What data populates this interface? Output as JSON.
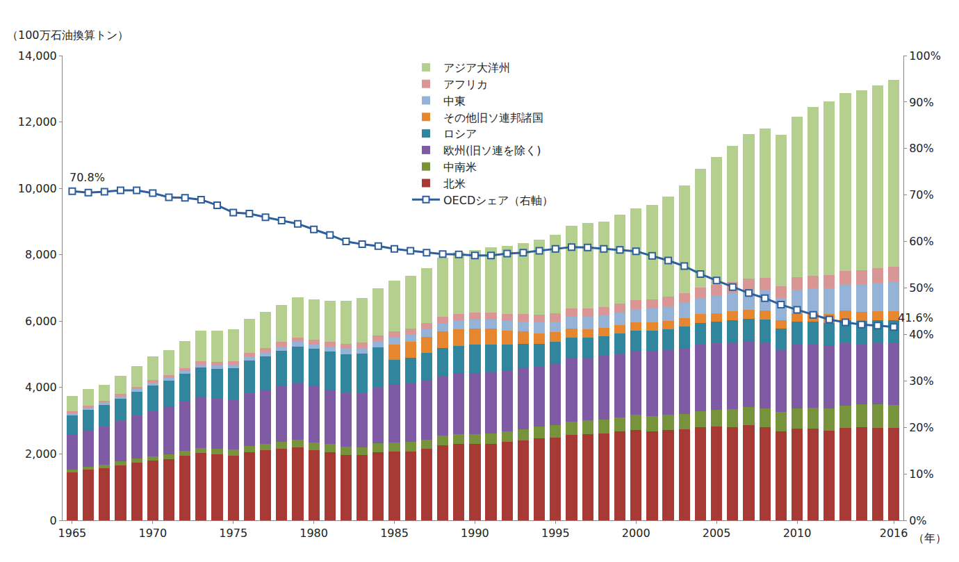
{
  "chart_data": {
    "type": "bar",
    "stacked": true,
    "grid": false,
    "legend": "top",
    "y_label": "（100万石油換算トン）",
    "x_label": "（年）",
    "x": [
      1965,
      1966,
      1967,
      1968,
      1969,
      1970,
      1971,
      1972,
      1973,
      1974,
      1975,
      1976,
      1977,
      1978,
      1979,
      1980,
      1981,
      1982,
      1983,
      1984,
      1985,
      1986,
      1987,
      1988,
      1989,
      1990,
      1991,
      1992,
      1993,
      1994,
      1995,
      1996,
      1997,
      1998,
      1999,
      2000,
      2001,
      2002,
      2003,
      2004,
      2005,
      2006,
      2007,
      2008,
      2009,
      2010,
      2011,
      2012,
      2013,
      2014,
      2015,
      2016
    ],
    "xlim": [
      1964.4,
      2016.6
    ],
    "xticks": [
      1965,
      1970,
      1975,
      1980,
      1985,
      1990,
      1995,
      2000,
      2005,
      2010,
      2016
    ],
    "ylim": [
      0,
      14000
    ],
    "yticks": [
      0,
      {
        "value": 2000,
        "label": "2,000"
      },
      {
        "value": 4000,
        "label": "4,000"
      },
      {
        "value": 6000,
        "label": "6,000"
      },
      {
        "value": 8000,
        "label": "8,000"
      },
      {
        "value": 10000,
        "label": "10,000"
      },
      {
        "value": 12000,
        "label": "12,000"
      },
      {
        "value": 14000,
        "label": "14,000"
      }
    ],
    "y2lim": [
      0,
      100
    ],
    "y2ticks": [
      {
        "value": 0,
        "label": "0%"
      },
      {
        "value": 10,
        "label": "10%"
      },
      {
        "value": 20,
        "label": "20%"
      },
      {
        "value": 30,
        "label": "30%"
      },
      {
        "value": 40,
        "label": "40%"
      },
      {
        "value": 50,
        "label": "50%"
      },
      {
        "value": 60,
        "label": "60%"
      },
      {
        "value": 70,
        "label": "70%"
      },
      {
        "value": 80,
        "label": "80%"
      },
      {
        "value": 90,
        "label": "90%"
      },
      {
        "value": 100,
        "label": "100%"
      }
    ],
    "series": [
      {
        "name": "北米",
        "color": "#a83a36",
        "values": [
          1440,
          1520,
          1580,
          1660,
          1740,
          1800,
          1850,
          1950,
          2020,
          1980,
          1950,
          2050,
          2110,
          2160,
          2190,
          2110,
          2060,
          1970,
          1960,
          2060,
          2070,
          2080,
          2150,
          2250,
          2300,
          2300,
          2310,
          2360,
          2410,
          2460,
          2500,
          2570,
          2590,
          2610,
          2670,
          2730,
          2680,
          2720,
          2740,
          2800,
          2820,
          2810,
          2860,
          2800,
          2680,
          2760,
          2760,
          2710,
          2780,
          2810,
          2790,
          2780
        ]
      },
      {
        "name": "中南米",
        "color": "#77933c",
        "values": [
          90,
          95,
          100,
          110,
          120,
          130,
          140,
          150,
          160,
          170,
          180,
          190,
          200,
          215,
          230,
          240,
          240,
          245,
          245,
          255,
          265,
          275,
          285,
          295,
          300,
          305,
          315,
          325,
          340,
          355,
          375,
          395,
          415,
          430,
          435,
          450,
          455,
          460,
          470,
          490,
          510,
          530,
          555,
          575,
          575,
          610,
          635,
          655,
          680,
          690,
          700,
          700
        ]
      },
      {
        "name": "欧州(旧ソ連を除く)",
        "color": "#7f5ba6",
        "values": [
          1060,
          1100,
          1140,
          1220,
          1300,
          1380,
          1420,
          1480,
          1550,
          1520,
          1500,
          1580,
          1600,
          1660,
          1720,
          1690,
          1640,
          1620,
          1630,
          1680,
          1740,
          1770,
          1800,
          1810,
          1820,
          1840,
          1850,
          1830,
          1830,
          1830,
          1860,
          1910,
          1900,
          1910,
          1910,
          1920,
          1950,
          1950,
          1980,
          2000,
          2000,
          2010,
          1990,
          1990,
          1880,
          1940,
          1890,
          1890,
          1880,
          1810,
          1850,
          1870
        ]
      },
      {
        "name": "ロシア",
        "color": "#31859c",
        "values": [
          580,
          620,
          650,
          680,
          720,
          760,
          800,
          830,
          870,
          900,
          950,
          990,
          1030,
          1070,
          1100,
          1120,
          1140,
          1160,
          1180,
          1210,
          760,
          780,
          800,
          830,
          830,
          850,
          830,
          780,
          740,
          670,
          640,
          630,
          600,
          600,
          610,
          620,
          630,
          630,
          640,
          650,
          650,
          670,
          670,
          680,
          650,
          670,
          690,
          690,
          690,
          690,
          680,
          670
        ]
      },
      {
        "name": "その他旧ソ連邦諸国",
        "color": "#e6862f",
        "values": [
          null,
          null,
          null,
          null,
          null,
          null,
          null,
          null,
          null,
          null,
          null,
          null,
          null,
          null,
          null,
          null,
          null,
          null,
          null,
          null,
          470,
          480,
          490,
          500,
          500,
          490,
          470,
          420,
          370,
          320,
          290,
          280,
          260,
          250,
          250,
          250,
          255,
          255,
          260,
          265,
          265,
          270,
          270,
          270,
          250,
          260,
          275,
          280,
          280,
          280,
          275,
          280
        ]
      },
      {
        "name": "中東",
        "color": "#95b3d7",
        "values": [
          50,
          55,
          58,
          62,
          68,
          72,
          78,
          85,
          92,
          98,
          105,
          115,
          125,
          135,
          140,
          140,
          150,
          165,
          180,
          195,
          205,
          215,
          225,
          240,
          250,
          255,
          265,
          285,
          300,
          320,
          330,
          345,
          360,
          370,
          380,
          395,
          410,
          430,
          450,
          490,
          530,
          560,
          590,
          630,
          660,
          710,
          740,
          770,
          800,
          830,
          870,
          895
        ]
      },
      {
        "name": "アフリカ",
        "color": "#d99694",
        "values": [
          60,
          63,
          66,
          70,
          74,
          80,
          86,
          92,
          98,
          104,
          110,
          116,
          122,
          128,
          134,
          140,
          150,
          158,
          165,
          172,
          180,
          185,
          190,
          200,
          208,
          215,
          220,
          224,
          228,
          235,
          245,
          250,
          258,
          262,
          268,
          275,
          280,
          288,
          300,
          315,
          325,
          330,
          340,
          355,
          360,
          375,
          375,
          395,
          410,
          420,
          430,
          440
        ]
      },
      {
        "name": "アジア大洋州",
        "color": "#b5d08e",
        "values": [
          470,
          497,
          486,
          548,
          618,
          708,
          746,
          813,
          930,
          948,
          965,
          1019,
          1093,
          1112,
          1196,
          1220,
          1240,
          1302,
          1340,
          1418,
          1530,
          1575,
          1660,
          1795,
          1872,
          1895,
          1960,
          2046,
          2132,
          2260,
          2360,
          2490,
          2567,
          2568,
          2677,
          2760,
          2840,
          3017,
          3240,
          3570,
          3850,
          4100,
          4365,
          4510,
          4565,
          4835,
          5095,
          5230,
          5340,
          5430,
          5515,
          5625
        ]
      },
      {
        "name": "OECDシェア（右軸）",
        "type": "line",
        "axis": "y2",
        "color": "#2e5f9c",
        "marker": "square",
        "values": [
          70.8,
          70.5,
          70.7,
          71.0,
          71.0,
          70.4,
          69.5,
          69.4,
          69.0,
          67.8,
          66.2,
          66.0,
          65.2,
          64.5,
          63.8,
          62.6,
          61.4,
          60.0,
          59.4,
          59.0,
          58.4,
          58.0,
          57.6,
          57.3,
          57.2,
          57.0,
          57.0,
          57.4,
          57.6,
          58.0,
          58.4,
          58.8,
          58.7,
          58.4,
          58.2,
          57.9,
          56.9,
          55.9,
          54.7,
          53.0,
          51.6,
          50.2,
          48.9,
          47.8,
          46.4,
          45.3,
          44.2,
          43.2,
          42.6,
          42.1,
          41.9,
          41.6
        ]
      }
    ],
    "annotations": [
      {
        "text": "70.8%",
        "x": 1965,
        "y": 70.8,
        "axis": "y2"
      },
      {
        "text": "41.6%",
        "x": 2016,
        "y": 41.6,
        "axis": "y2"
      }
    ]
  }
}
